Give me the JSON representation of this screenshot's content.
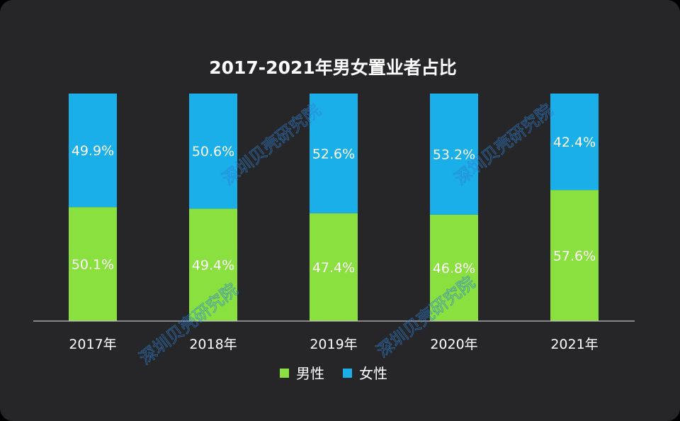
{
  "chart_data": {
    "type": "bar",
    "stacked": true,
    "title": "2017-2021年男女置业者占比",
    "categories": [
      "2017年",
      "2018年",
      "2019年",
      "2020年",
      "2021年"
    ],
    "series": [
      {
        "name": "男性",
        "color": "#8ae03e",
        "values": [
          50.1,
          49.4,
          47.4,
          46.8,
          57.6
        ],
        "labels": [
          "50.1%",
          "49.4%",
          "47.4%",
          "46.8%",
          "57.6%"
        ]
      },
      {
        "name": "女性",
        "color": "#1aafe8",
        "values": [
          49.9,
          50.6,
          52.6,
          53.2,
          42.4
        ],
        "labels": [
          "49.9%",
          "50.6%",
          "52.6%",
          "53.2%",
          "42.4%"
        ]
      }
    ],
    "ylim": [
      0,
      100
    ],
    "grid": false,
    "legend": "bottom-center"
  },
  "watermark": {
    "text": "深圳贝壳研究院"
  }
}
